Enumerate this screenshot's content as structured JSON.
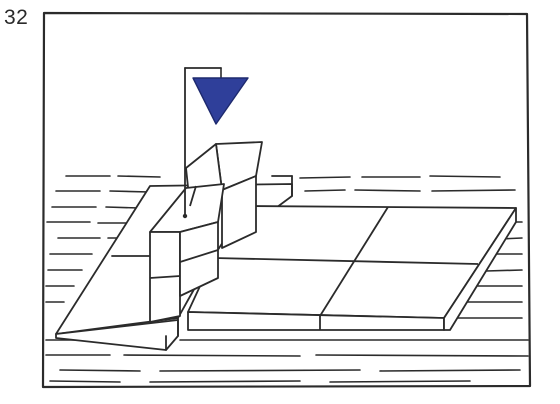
{
  "figure": {
    "number": "32"
  },
  "colors": {
    "ink": "#2b2b2b",
    "flag": "#2f3f9a",
    "paper": "#ffffff"
  },
  "icons": {
    "flag": "triangle-flag-icon"
  }
}
